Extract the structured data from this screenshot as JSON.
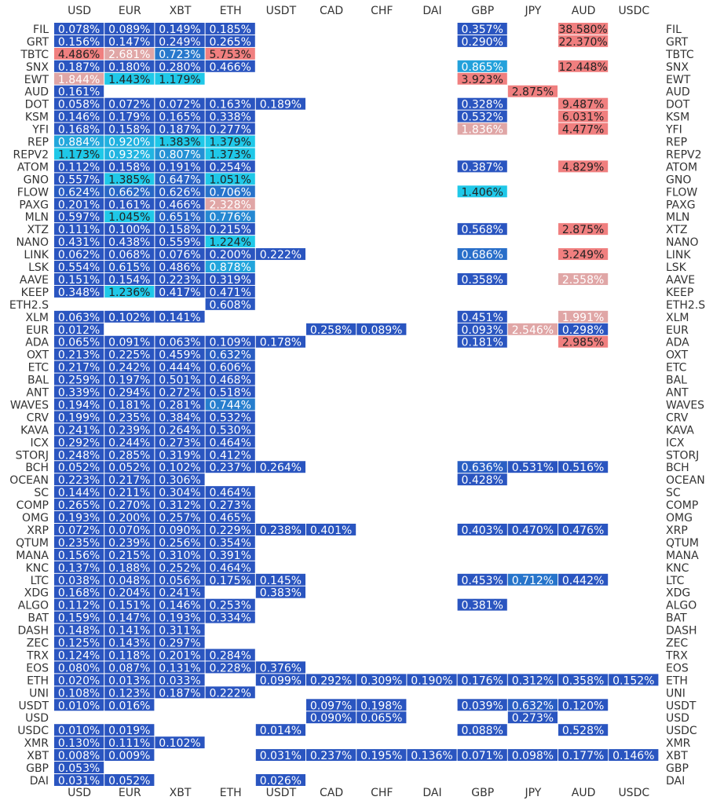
{
  "chart_data": {
    "type": "heatmap",
    "columns": [
      "USD",
      "EUR",
      "XBT",
      "ETH",
      "USDT",
      "CAD",
      "CHF",
      "DAI",
      "GBP",
      "JPY",
      "AUD",
      "USDC"
    ],
    "rows": [
      "FIL",
      "GRT",
      "TBTC",
      "SNX",
      "EWT",
      "AUD",
      "DOT",
      "KSM",
      "YFI",
      "REP",
      "REPV2",
      "ATOM",
      "GNO",
      "FLOW",
      "PAXG",
      "MLN",
      "XTZ",
      "NANO",
      "LINK",
      "LSK",
      "AAVE",
      "KEEP",
      "ETH2.S",
      "XLM",
      "EUR",
      "ADA",
      "OXT",
      "ETC",
      "BAL",
      "ANT",
      "WAVES",
      "CRV",
      "KAVA",
      "ICX",
      "STORJ",
      "BCH",
      "OCEAN",
      "SC",
      "COMP",
      "OMG",
      "XRP",
      "QTUM",
      "MANA",
      "KNC",
      "LTC",
      "XDG",
      "ALGO",
      "BAT",
      "DASH",
      "ZEC",
      "TRX",
      "EOS",
      "ETH",
      "UNI",
      "USDT",
      "USD",
      "USDC",
      "XMR",
      "XBT",
      "GBP",
      "DAI"
    ],
    "values": [
      [
        0.078,
        0.089,
        0.149,
        0.185,
        null,
        null,
        null,
        null,
        0.357,
        null,
        38.58,
        null
      ],
      [
        0.156,
        0.147,
        0.249,
        0.265,
        null,
        null,
        null,
        null,
        0.29,
        null,
        22.37,
        null
      ],
      [
        4.486,
        2.681,
        0.723,
        5.753,
        null,
        null,
        null,
        null,
        null,
        null,
        null,
        null
      ],
      [
        0.187,
        0.18,
        0.28,
        0.466,
        null,
        null,
        null,
        null,
        0.865,
        null,
        12.448,
        null
      ],
      [
        1.844,
        1.443,
        1.179,
        null,
        null,
        null,
        null,
        null,
        3.923,
        null,
        null,
        null
      ],
      [
        0.161,
        null,
        null,
        null,
        null,
        null,
        null,
        null,
        null,
        2.875,
        null,
        null
      ],
      [
        0.058,
        0.072,
        0.072,
        0.163,
        0.189,
        null,
        null,
        null,
        0.328,
        null,
        9.487,
        null
      ],
      [
        0.146,
        0.179,
        0.165,
        0.338,
        null,
        null,
        null,
        null,
        0.532,
        null,
        6.031,
        null
      ],
      [
        0.168,
        0.158,
        0.187,
        0.277,
        null,
        null,
        null,
        null,
        1.836,
        null,
        4.477,
        null
      ],
      [
        0.884,
        0.92,
        1.383,
        1.379,
        null,
        null,
        null,
        null,
        null,
        null,
        null,
        null
      ],
      [
        1.173,
        0.932,
        0.807,
        1.373,
        null,
        null,
        null,
        null,
        null,
        null,
        null,
        null
      ],
      [
        0.112,
        0.158,
        0.191,
        0.254,
        null,
        null,
        null,
        null,
        0.387,
        null,
        4.829,
        null
      ],
      [
        0.557,
        1.385,
        0.647,
        1.051,
        null,
        null,
        null,
        null,
        null,
        null,
        null,
        null
      ],
      [
        0.624,
        0.662,
        0.626,
        0.706,
        null,
        null,
        null,
        null,
        1.406,
        null,
        null,
        null
      ],
      [
        0.201,
        0.161,
        0.466,
        2.328,
        null,
        null,
        null,
        null,
        null,
        null,
        null,
        null
      ],
      [
        0.597,
        1.045,
        0.651,
        0.776,
        null,
        null,
        null,
        null,
        null,
        null,
        null,
        null
      ],
      [
        0.111,
        0.1,
        0.158,
        0.215,
        null,
        null,
        null,
        null,
        0.568,
        null,
        2.875,
        null
      ],
      [
        0.431,
        0.438,
        0.559,
        1.224,
        null,
        null,
        null,
        null,
        null,
        null,
        null,
        null
      ],
      [
        0.062,
        0.068,
        0.076,
        0.2,
        0.222,
        null,
        null,
        null,
        0.686,
        null,
        3.249,
        null
      ],
      [
        0.554,
        0.615,
        0.486,
        0.878,
        null,
        null,
        null,
        null,
        null,
        null,
        null,
        null
      ],
      [
        0.151,
        0.154,
        0.223,
        0.319,
        null,
        null,
        null,
        null,
        0.358,
        null,
        2.558,
        null
      ],
      [
        0.348,
        1.236,
        0.417,
        0.471,
        null,
        null,
        null,
        null,
        null,
        null,
        null,
        null
      ],
      [
        null,
        null,
        null,
        0.608,
        null,
        null,
        null,
        null,
        null,
        null,
        null,
        null
      ],
      [
        0.063,
        0.102,
        0.141,
        null,
        null,
        null,
        null,
        null,
        0.451,
        null,
        1.991,
        null
      ],
      [
        0.012,
        null,
        null,
        null,
        null,
        0.258,
        0.089,
        null,
        0.093,
        2.546,
        0.298,
        null
      ],
      [
        0.065,
        0.091,
        0.063,
        0.109,
        0.178,
        null,
        null,
        null,
        0.181,
        null,
        2.985,
        null
      ],
      [
        0.213,
        0.225,
        0.459,
        0.632,
        null,
        null,
        null,
        null,
        null,
        null,
        null,
        null
      ],
      [
        0.217,
        0.242,
        0.444,
        0.606,
        null,
        null,
        null,
        null,
        null,
        null,
        null,
        null
      ],
      [
        0.259,
        0.197,
        0.501,
        0.468,
        null,
        null,
        null,
        null,
        null,
        null,
        null,
        null
      ],
      [
        0.339,
        0.294,
        0.272,
        0.518,
        null,
        null,
        null,
        null,
        null,
        null,
        null,
        null
      ],
      [
        0.194,
        0.181,
        0.281,
        0.744,
        null,
        null,
        null,
        null,
        null,
        null,
        null,
        null
      ],
      [
        0.199,
        0.235,
        0.384,
        0.532,
        null,
        null,
        null,
        null,
        null,
        null,
        null,
        null
      ],
      [
        0.241,
        0.239,
        0.264,
        0.53,
        null,
        null,
        null,
        null,
        null,
        null,
        null,
        null
      ],
      [
        0.292,
        0.244,
        0.273,
        0.464,
        null,
        null,
        null,
        null,
        null,
        null,
        null,
        null
      ],
      [
        0.248,
        0.285,
        0.319,
        0.412,
        null,
        null,
        null,
        null,
        null,
        null,
        null,
        null
      ],
      [
        0.052,
        0.052,
        0.102,
        0.237,
        0.264,
        null,
        null,
        null,
        0.636,
        0.531,
        0.516,
        null
      ],
      [
        0.223,
        0.217,
        0.306,
        null,
        null,
        null,
        null,
        null,
        0.428,
        null,
        null,
        null
      ],
      [
        0.144,
        0.211,
        0.304,
        0.464,
        null,
        null,
        null,
        null,
        null,
        null,
        null,
        null
      ],
      [
        0.265,
        0.27,
        0.312,
        0.273,
        null,
        null,
        null,
        null,
        null,
        null,
        null,
        null
      ],
      [
        0.193,
        0.2,
        0.257,
        0.465,
        null,
        null,
        null,
        null,
        null,
        null,
        null,
        null
      ],
      [
        0.072,
        0.07,
        0.09,
        0.229,
        0.238,
        0.401,
        null,
        null,
        0.403,
        0.47,
        0.476,
        null
      ],
      [
        0.235,
        0.239,
        0.256,
        0.354,
        null,
        null,
        null,
        null,
        null,
        null,
        null,
        null
      ],
      [
        0.156,
        0.215,
        0.31,
        0.391,
        null,
        null,
        null,
        null,
        null,
        null,
        null,
        null
      ],
      [
        0.137,
        0.188,
        0.252,
        0.464,
        null,
        null,
        null,
        null,
        null,
        null,
        null,
        null
      ],
      [
        0.038,
        0.048,
        0.056,
        0.175,
        0.145,
        null,
        null,
        null,
        0.453,
        0.712,
        0.442,
        null
      ],
      [
        0.168,
        0.204,
        0.241,
        null,
        0.383,
        null,
        null,
        null,
        null,
        null,
        null,
        null
      ],
      [
        0.112,
        0.151,
        0.146,
        0.253,
        null,
        null,
        null,
        null,
        0.381,
        null,
        null,
        null
      ],
      [
        0.159,
        0.147,
        0.193,
        0.334,
        null,
        null,
        null,
        null,
        null,
        null,
        null,
        null
      ],
      [
        0.148,
        0.141,
        0.311,
        null,
        null,
        null,
        null,
        null,
        null,
        null,
        null,
        null
      ],
      [
        0.125,
        0.143,
        0.297,
        null,
        null,
        null,
        null,
        null,
        null,
        null,
        null,
        null
      ],
      [
        0.124,
        0.118,
        0.201,
        0.284,
        null,
        null,
        null,
        null,
        null,
        null,
        null,
        null
      ],
      [
        0.08,
        0.087,
        0.131,
        0.228,
        0.376,
        null,
        null,
        null,
        null,
        null,
        null,
        null
      ],
      [
        0.02,
        0.013,
        0.033,
        null,
        0.099,
        0.292,
        0.309,
        0.19,
        0.176,
        0.312,
        0.358,
        0.152
      ],
      [
        0.108,
        0.123,
        0.187,
        0.222,
        null,
        null,
        null,
        null,
        null,
        null,
        null,
        null
      ],
      [
        0.01,
        0.016,
        null,
        null,
        null,
        0.097,
        0.198,
        null,
        0.039,
        0.632,
        0.12,
        null
      ],
      [
        null,
        null,
        null,
        null,
        null,
        0.09,
        0.065,
        null,
        null,
        0.273,
        null,
        null
      ],
      [
        0.01,
        0.019,
        null,
        null,
        0.014,
        null,
        null,
        null,
        0.088,
        null,
        0.528,
        null
      ],
      [
        0.13,
        0.111,
        0.102,
        null,
        null,
        null,
        null,
        null,
        null,
        null,
        null,
        null
      ],
      [
        0.008,
        0.009,
        null,
        null,
        0.031,
        0.237,
        0.195,
        0.136,
        0.071,
        0.098,
        0.177,
        0.146
      ],
      [
        0.053,
        null,
        null,
        null,
        null,
        null,
        null,
        null,
        null,
        null,
        null,
        null
      ],
      [
        0.031,
        0.052,
        null,
        null,
        0.026,
        null,
        null,
        null,
        null,
        null,
        null,
        null
      ]
    ],
    "value_format": "{v}%",
    "colormap": {
      "low": "#2a55c0",
      "mid": "#1fc8e8",
      "high_dim": "#e0a6a6",
      "high": "#f07f7f"
    },
    "label_color_light": "#ffffff",
    "label_color_dark": "#222222",
    "xlabel": "",
    "ylabel": "",
    "grid": false,
    "legend": "none"
  }
}
